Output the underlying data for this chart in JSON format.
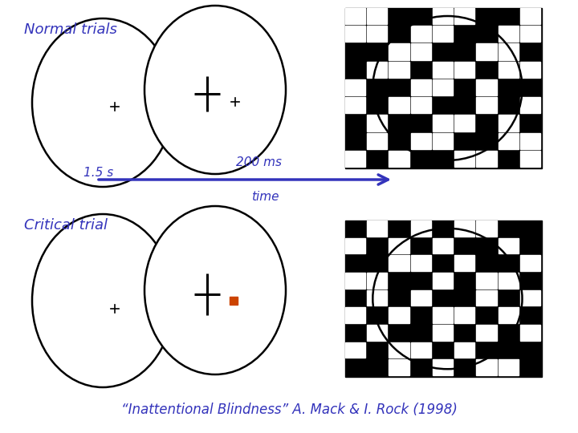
{
  "bg_color": "#ffffff",
  "blue_color": "#3333bb",
  "black_color": "#000000",
  "orange_color": "#cc4400",
  "title_normal": "Normal trials",
  "title_critical": "Critical trial",
  "citation": "“Inattentional Blindness” A. Mack & I. Rock (1998)",
  "label_15s": "1.5 s",
  "label_200ms": "200 ms",
  "label_time": "time",
  "fig_w": 7.2,
  "fig_h": 5.4,
  "dpi": 100,
  "mask_tiles": [
    [
      0,
      0,
      1,
      1,
      0,
      0,
      1,
      1,
      0
    ],
    [
      0,
      0,
      1,
      0,
      0,
      1,
      1,
      0,
      0
    ],
    [
      1,
      1,
      0,
      0,
      1,
      1,
      0,
      0,
      1
    ],
    [
      1,
      0,
      0,
      1,
      0,
      0,
      1,
      0,
      0
    ],
    [
      0,
      1,
      1,
      0,
      0,
      1,
      0,
      1,
      1
    ],
    [
      0,
      1,
      0,
      0,
      1,
      1,
      0,
      1,
      0
    ],
    [
      1,
      0,
      1,
      1,
      0,
      0,
      1,
      0,
      1
    ],
    [
      1,
      0,
      1,
      0,
      0,
      1,
      1,
      0,
      0
    ],
    [
      0,
      1,
      0,
      1,
      1,
      0,
      0,
      1,
      0
    ]
  ]
}
